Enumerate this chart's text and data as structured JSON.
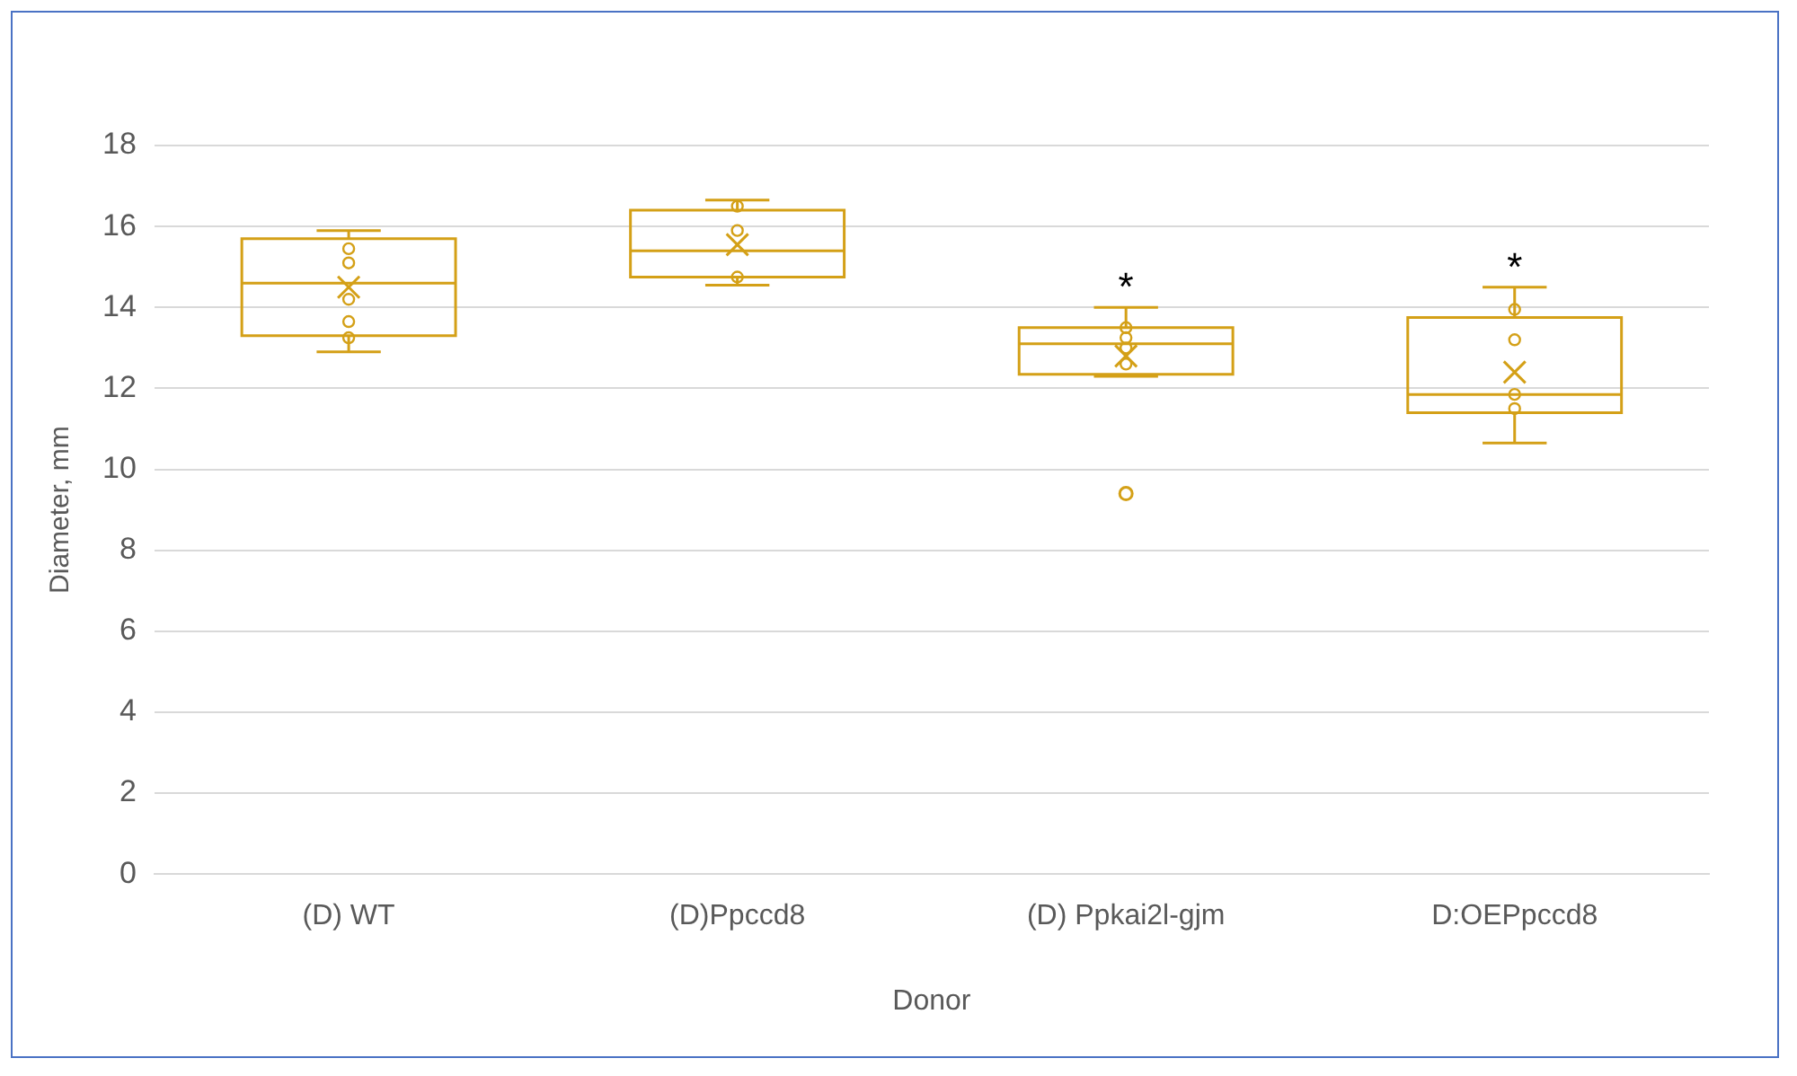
{
  "chart_data": {
    "type": "box",
    "xlabel": "Donor",
    "ylabel": "Diameter, mm",
    "categories": [
      "(D) WT",
      "(D)Ppccd8",
      "(D) Ppkai2l-gjm",
      "D:OEPpccd8"
    ],
    "series": [
      {
        "type": "box",
        "color": "#d4a017",
        "boxes": [
          {
            "low": 12.9,
            "q1": 13.3,
            "median": 14.6,
            "q3": 15.7,
            "high": 15.9,
            "mean": 14.5
          },
          {
            "low": 14.55,
            "q1": 14.75,
            "median": 15.4,
            "q3": 16.4,
            "high": 16.65,
            "mean": 15.55
          },
          {
            "low": 12.3,
            "q1": 12.35,
            "median": 13.1,
            "q3": 13.5,
            "high": 14.0,
            "mean": 12.8,
            "outliers": [
              9.4
            ]
          },
          {
            "low": 10.65,
            "q1": 11.4,
            "median": 11.85,
            "q3": 13.75,
            "high": 14.5,
            "mean": 12.4
          }
        ]
      },
      {
        "type": "scatter",
        "color": "#d4a017",
        "marker": "circle",
        "x": [
          "(D) WT",
          "(D) WT",
          "(D) WT",
          "(D) WT",
          "(D) WT",
          "(D)Ppccd8",
          "(D)Ppccd8",
          "(D)Ppccd8",
          "(D) Ppkai2l-gjm",
          "(D) Ppkai2l-gjm",
          "(D) Ppkai2l-gjm",
          "(D) Ppkai2l-gjm",
          "D:OEPpccd8",
          "D:OEPpccd8",
          "D:OEPpccd8",
          "D:OEPpccd8"
        ],
        "values": [
          15.45,
          15.1,
          14.2,
          13.65,
          13.25,
          16.5,
          15.9,
          14.75,
          13.5,
          13.25,
          13.0,
          12.6,
          13.95,
          13.2,
          11.85,
          11.5
        ]
      }
    ],
    "ylim": [
      0,
      18
    ],
    "yticks": [
      0,
      2,
      4,
      6,
      8,
      10,
      12,
      14,
      16,
      18
    ],
    "grid": "y",
    "legend": false,
    "annotations": [
      "*",
      "*"
    ]
  }
}
